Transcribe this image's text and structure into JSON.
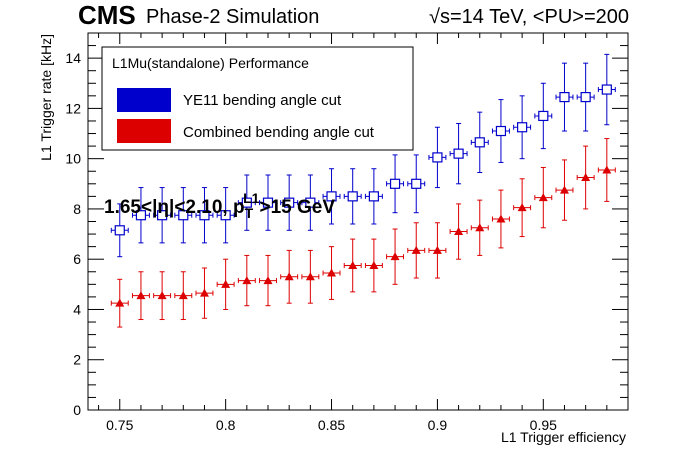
{
  "header": {
    "brand": "CMS",
    "subtitle": "Phase-2 Simulation",
    "energy_label": "√s=14 TeV, <PU>=200"
  },
  "chart_data": {
    "type": "scatter",
    "xlabel": "L1 Trigger efficiency",
    "ylabel": "L1 Trigger rate [kHz]",
    "xlim": [
      0.735,
      0.99
    ],
    "ylim": [
      0,
      15
    ],
    "x_ticks": [
      "0.75",
      "0.8",
      "0.85",
      "0.9",
      "0.95"
    ],
    "y_ticks": [
      "0",
      "2",
      "4",
      "6",
      "8",
      "10",
      "12",
      "14"
    ],
    "grid": false,
    "legend": {
      "placement": "top-left",
      "title": "L1Mu(standalone) Performance",
      "entries": [
        "YE11 bending angle cut",
        "Combined bending angle cut"
      ]
    },
    "annotation": {
      "prefix": "1.65<|η|<2.10, p",
      "sub": "T",
      "sup": "L1",
      "suffix": ">15 GeV"
    },
    "series": [
      {
        "name": "YE11 bending angle cut",
        "color": "#0000cc",
        "marker": "open-square",
        "x": [
          0.75,
          0.76,
          0.77,
          0.78,
          0.79,
          0.8,
          0.81,
          0.82,
          0.83,
          0.84,
          0.85,
          0.86,
          0.87,
          0.88,
          0.89,
          0.9,
          0.91,
          0.92,
          0.93,
          0.94,
          0.95,
          0.96,
          0.97,
          0.98
        ],
        "y": [
          7.15,
          7.75,
          7.75,
          7.75,
          7.75,
          7.75,
          8.25,
          8.25,
          8.25,
          8.25,
          8.5,
          8.5,
          8.5,
          9.0,
          9.0,
          10.05,
          10.2,
          10.65,
          11.1,
          11.25,
          11.7,
          12.45,
          12.45,
          12.75
        ],
        "y_err": [
          1.05,
          1.1,
          1.1,
          1.1,
          1.1,
          1.1,
          1.1,
          1.1,
          1.1,
          1.1,
          1.1,
          1.1,
          1.1,
          1.15,
          1.15,
          1.2,
          1.2,
          1.2,
          1.25,
          1.25,
          1.3,
          1.35,
          1.35,
          1.4
        ],
        "x_err": 0.004
      },
      {
        "name": "Combined bending angle cut",
        "color": "#dd0000",
        "marker": "filled-triangle",
        "x": [
          0.75,
          0.76,
          0.77,
          0.78,
          0.79,
          0.8,
          0.81,
          0.82,
          0.83,
          0.84,
          0.85,
          0.86,
          0.87,
          0.88,
          0.89,
          0.9,
          0.91,
          0.92,
          0.93,
          0.94,
          0.95,
          0.96,
          0.97,
          0.98
        ],
        "y": [
          4.25,
          4.55,
          4.55,
          4.55,
          4.65,
          5.0,
          5.15,
          5.15,
          5.3,
          5.3,
          5.45,
          5.75,
          5.75,
          6.1,
          6.35,
          6.35,
          7.1,
          7.25,
          7.6,
          8.05,
          8.45,
          8.75,
          9.25,
          9.55
        ],
        "y_err": [
          0.95,
          0.95,
          0.95,
          0.95,
          1.0,
          1.0,
          1.0,
          1.0,
          1.05,
          1.05,
          1.05,
          1.05,
          1.05,
          1.1,
          1.1,
          1.1,
          1.1,
          1.1,
          1.15,
          1.15,
          1.2,
          1.2,
          1.25,
          1.25
        ],
        "x_err": 0.004
      }
    ]
  }
}
